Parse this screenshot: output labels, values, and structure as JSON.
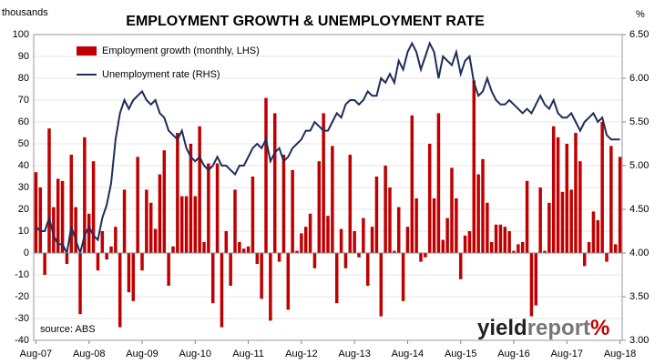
{
  "chart_data": {
    "type": "bar",
    "title": "EMPLOYMENT GROWTH & UNEMPLOYMENT RATE",
    "y_label": "thousands",
    "y2_label": "%",
    "annotation": "source: ABS",
    "watermark": [
      "yield",
      "report",
      "%"
    ],
    "categories": [
      "Aug-07",
      null,
      null,
      null,
      null,
      null,
      null,
      null,
      null,
      null,
      null,
      null,
      "Aug-08",
      null,
      null,
      null,
      null,
      null,
      null,
      null,
      null,
      null,
      null,
      null,
      "Aug-09",
      null,
      null,
      null,
      null,
      null,
      null,
      null,
      null,
      null,
      null,
      null,
      "Aug-10",
      null,
      null,
      null,
      null,
      null,
      null,
      null,
      null,
      null,
      null,
      null,
      "Aug-11",
      null,
      null,
      null,
      null,
      null,
      null,
      null,
      null,
      null,
      null,
      null,
      "Aug-12",
      null,
      null,
      null,
      null,
      null,
      null,
      null,
      null,
      null,
      null,
      null,
      "Aug-13",
      null,
      null,
      null,
      null,
      null,
      null,
      null,
      null,
      null,
      null,
      null,
      "Aug-14",
      null,
      null,
      null,
      null,
      null,
      null,
      null,
      null,
      null,
      null,
      null,
      "Aug-15",
      null,
      null,
      null,
      null,
      null,
      null,
      null,
      null,
      null,
      null,
      null,
      "Aug-16",
      null,
      null,
      null,
      null,
      null,
      null,
      null,
      null,
      null,
      null,
      null,
      "Aug-17",
      null,
      null,
      null,
      null,
      null,
      null,
      null,
      null,
      null,
      null,
      null,
      "Aug-18"
    ],
    "series": [
      {
        "name": "Employment growth (monthly, LHS)",
        "type": "bar",
        "color": "#c00000",
        "values": [
          37,
          30,
          -10,
          57,
          21,
          34,
          33,
          -5,
          45,
          21,
          -28,
          53,
          18,
          42,
          -8,
          10,
          -3,
          3,
          12,
          -34,
          29,
          -18,
          -22,
          44,
          -8,
          29,
          23,
          11,
          36,
          47,
          -15,
          3,
          55,
          26,
          26,
          50,
          26,
          58,
          5,
          41,
          -23,
          41,
          -34,
          10,
          -15,
          29,
          5,
          2,
          3,
          35,
          -5,
          -21,
          71,
          -31,
          64,
          -4,
          45,
          -26,
          38,
          1,
          9,
          12,
          18,
          -7,
          42,
          64,
          17,
          49,
          -23,
          11,
          -7,
          45,
          10,
          -2,
          16,
          -15,
          12,
          35,
          -29,
          40,
          30,
          1,
          21,
          -22,
          12,
          63,
          25,
          -4,
          -2,
          50,
          25,
          64,
          6,
          16,
          39,
          25,
          -12,
          8,
          10,
          79,
          36,
          43,
          23,
          5,
          13,
          13,
          12,
          10,
          1,
          4,
          5,
          33,
          -29,
          -24,
          30,
          1,
          23,
          58,
          53,
          28,
          50,
          29,
          55,
          42,
          -6,
          5,
          19,
          15,
          60,
          -4,
          49,
          4,
          44
        ]
      },
      {
        "name": "Unemployment rate (RHS)",
        "type": "line",
        "axis": "y2",
        "color": "#1f2d5a",
        "values": [
          4.3,
          4.25,
          4.25,
          4.4,
          4.2,
          4.1,
          4.1,
          4.0,
          4.3,
          4.15,
          4.0,
          4.2,
          4.3,
          4.2,
          4.15,
          4.4,
          4.55,
          4.8,
          5.3,
          5.6,
          5.75,
          5.65,
          5.75,
          5.8,
          5.85,
          5.75,
          5.7,
          5.75,
          5.6,
          5.55,
          5.4,
          5.35,
          5.3,
          5.4,
          5.2,
          5.1,
          5.05,
          5.1,
          5.0,
          4.95,
          5.0,
          5.1,
          5.0,
          5.0,
          4.95,
          4.9,
          5.0,
          5.0,
          5.1,
          5.2,
          5.25,
          5.2,
          5.3,
          5.05,
          5.15,
          5.2,
          5.05,
          5.1,
          5.2,
          5.25,
          5.3,
          5.4,
          5.4,
          5.5,
          5.45,
          5.4,
          5.4,
          5.5,
          5.6,
          5.55,
          5.7,
          5.75,
          5.75,
          5.7,
          5.75,
          5.85,
          5.8,
          5.8,
          6.0,
          5.95,
          6.05,
          5.95,
          6.2,
          6.1,
          6.3,
          6.4,
          6.3,
          6.1,
          6.25,
          6.4,
          6.3,
          6.0,
          6.25,
          6.2,
          6.15,
          6.3,
          6.05,
          6.2,
          6.25,
          5.95,
          5.8,
          5.85,
          6.0,
          5.85,
          5.75,
          5.7,
          5.7,
          5.75,
          5.7,
          5.65,
          5.6,
          5.65,
          5.6,
          5.7,
          5.8,
          5.7,
          5.65,
          5.75,
          5.6,
          5.55,
          5.55,
          5.6,
          5.5,
          5.4,
          5.5,
          5.55,
          5.6,
          5.5,
          5.55,
          5.35,
          5.3,
          5.3,
          5.3
        ]
      }
    ],
    "ylim": [
      -40,
      100
    ],
    "yticks": [
      -40,
      -30,
      -20,
      -10,
      0,
      10,
      20,
      30,
      40,
      50,
      60,
      70,
      80,
      90,
      100
    ],
    "y2lim": [
      3,
      6.5
    ],
    "y2ticks": [
      {
        "value": 3,
        "label": "3.00"
      },
      {
        "value": 3.5,
        "label": "3.50"
      },
      {
        "value": 4,
        "label": "4.00"
      },
      {
        "value": 4.5,
        "label": "4.50"
      },
      {
        "value": 5,
        "label": "5.00"
      },
      {
        "value": 5.5,
        "label": "5.50"
      },
      {
        "value": 6,
        "label": "6.00"
      },
      {
        "value": 6.5,
        "label": "6.50"
      }
    ],
    "grid": true
  }
}
